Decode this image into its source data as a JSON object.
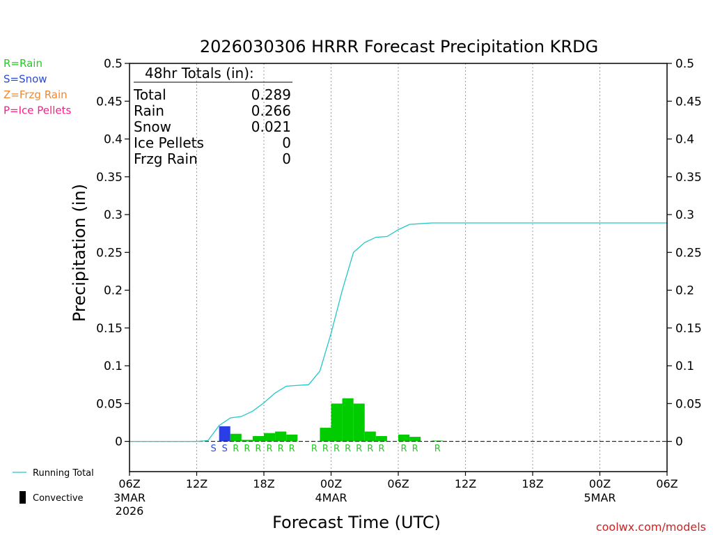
{
  "chart_data": {
    "type": "bar",
    "title": "2026030306 HRRR Forecast Precipitation KRDG",
    "xlabel": "Forecast Time (UTC)",
    "ylabel": "Precipitation (in)",
    "ylim": [
      -0.04,
      0.5
    ],
    "yticks": [
      "0.5",
      "0.45",
      "0.4",
      "0.35",
      "0.3",
      "0.25",
      "0.2",
      "0.15",
      "0.1",
      "0.05",
      "0"
    ],
    "ytick_values": [
      0.5,
      0.45,
      0.4,
      0.35,
      0.3,
      0.25,
      0.2,
      0.15,
      0.1,
      0.05,
      0
    ],
    "xlim_hours": [
      0,
      48
    ],
    "xticks": [
      {
        "hour": 0,
        "label": "06Z",
        "sub": "3MAR",
        "sub2": "2026"
      },
      {
        "hour": 6,
        "label": "12Z"
      },
      {
        "hour": 12,
        "label": "18Z"
      },
      {
        "hour": 18,
        "label": "00Z",
        "sub": "4MAR"
      },
      {
        "hour": 24,
        "label": "06Z"
      },
      {
        "hour": 30,
        "label": "12Z"
      },
      {
        "hour": 36,
        "label": "18Z"
      },
      {
        "hour": 42,
        "label": "00Z",
        "sub": "5MAR"
      },
      {
        "hour": 48,
        "label": "06Z"
      }
    ],
    "bars": [
      {
        "hour": 8,
        "value": 0.02,
        "type": "S"
      },
      {
        "hour": 9,
        "value": 0.01,
        "type": "R"
      },
      {
        "hour": 10,
        "value": 0.002,
        "type": "R"
      },
      {
        "hour": 11,
        "value": 0.007,
        "type": "R"
      },
      {
        "hour": 12,
        "value": 0.011,
        "type": "R"
      },
      {
        "hour": 13,
        "value": 0.013,
        "type": "R"
      },
      {
        "hour": 14,
        "value": 0.009,
        "type": "R"
      },
      {
        "hour": 17,
        "value": 0.018,
        "type": "R"
      },
      {
        "hour": 18,
        "value": 0.05,
        "type": "R"
      },
      {
        "hour": 19,
        "value": 0.057,
        "type": "R"
      },
      {
        "hour": 20,
        "value": 0.05,
        "type": "R"
      },
      {
        "hour": 21,
        "value": 0.013,
        "type": "R"
      },
      {
        "hour": 22,
        "value": 0.007,
        "type": "R"
      },
      {
        "hour": 24,
        "value": 0.009,
        "type": "R"
      },
      {
        "hour": 25,
        "value": 0.006,
        "type": "R"
      },
      {
        "hour": 27,
        "value": 0.001,
        "type": "R"
      }
    ],
    "type_markers": [
      {
        "hour": 7,
        "type": "S"
      },
      {
        "hour": 8,
        "type": "S"
      },
      {
        "hour": 9,
        "type": "R"
      },
      {
        "hour": 10,
        "type": "R"
      },
      {
        "hour": 11,
        "type": "R"
      },
      {
        "hour": 12,
        "type": "R"
      },
      {
        "hour": 13,
        "type": "R"
      },
      {
        "hour": 14,
        "type": "R"
      },
      {
        "hour": 16,
        "type": "R"
      },
      {
        "hour": 17,
        "type": "R"
      },
      {
        "hour": 18,
        "type": "R"
      },
      {
        "hour": 19,
        "type": "R"
      },
      {
        "hour": 20,
        "type": "R"
      },
      {
        "hour": 21,
        "type": "R"
      },
      {
        "hour": 22,
        "type": "R"
      },
      {
        "hour": 24,
        "type": "R"
      },
      {
        "hour": 25,
        "type": "R"
      },
      {
        "hour": 27,
        "type": "R"
      }
    ],
    "running_total": {
      "name": "Running Total",
      "color": "#22c8c8",
      "points": [
        [
          0,
          0
        ],
        [
          1,
          0
        ],
        [
          2,
          0
        ],
        [
          3,
          0
        ],
        [
          4,
          0
        ],
        [
          5,
          0
        ],
        [
          6,
          0
        ],
        [
          7,
          0.001
        ],
        [
          8,
          0.021
        ],
        [
          9,
          0.031
        ],
        [
          10,
          0.033
        ],
        [
          11,
          0.04
        ],
        [
          12,
          0.051
        ],
        [
          13,
          0.064
        ],
        [
          14,
          0.073
        ],
        [
          15,
          0.074
        ],
        [
          16,
          0.075
        ],
        [
          17,
          0.093
        ],
        [
          18,
          0.143
        ],
        [
          19,
          0.2
        ],
        [
          20,
          0.25
        ],
        [
          21,
          0.263
        ],
        [
          22,
          0.27
        ],
        [
          23,
          0.271
        ],
        [
          24,
          0.28
        ],
        [
          25,
          0.287
        ],
        [
          26,
          0.288
        ],
        [
          27,
          0.289
        ],
        [
          28,
          0.289
        ],
        [
          36,
          0.289
        ],
        [
          42,
          0.289
        ],
        [
          48,
          0.289
        ]
      ]
    },
    "totals": {
      "heading": "48hr Totals (in):",
      "rows": [
        {
          "label": "Total",
          "value": "0.289"
        },
        {
          "label": "Rain",
          "value": "0.266"
        },
        {
          "label": "Snow",
          "value": "0.021"
        },
        {
          "label": "Ice Pellets",
          "value": "0"
        },
        {
          "label": "Frzg Rain",
          "value": "0"
        }
      ]
    },
    "precip_legend": [
      {
        "text": "R=Rain",
        "color": "#22cc22"
      },
      {
        "text": "S=Snow",
        "color": "#2a4ad8"
      },
      {
        "text": "Z=Frzg Rain",
        "color": "#ee8833"
      },
      {
        "text": "P=Ice Pellets",
        "color": "#ee2288"
      }
    ],
    "line_legend": [
      {
        "text": "Running Total",
        "color": "#22c8c8",
        "kind": "line"
      },
      {
        "text": "Convective",
        "color": "#000000",
        "kind": "block"
      }
    ],
    "colors": {
      "R": "#00cc00",
      "S": "#2a3ee8",
      "R_text": "#22cc22",
      "S_text": "#2a4ad8"
    },
    "credit": "coolwx.com/models"
  }
}
